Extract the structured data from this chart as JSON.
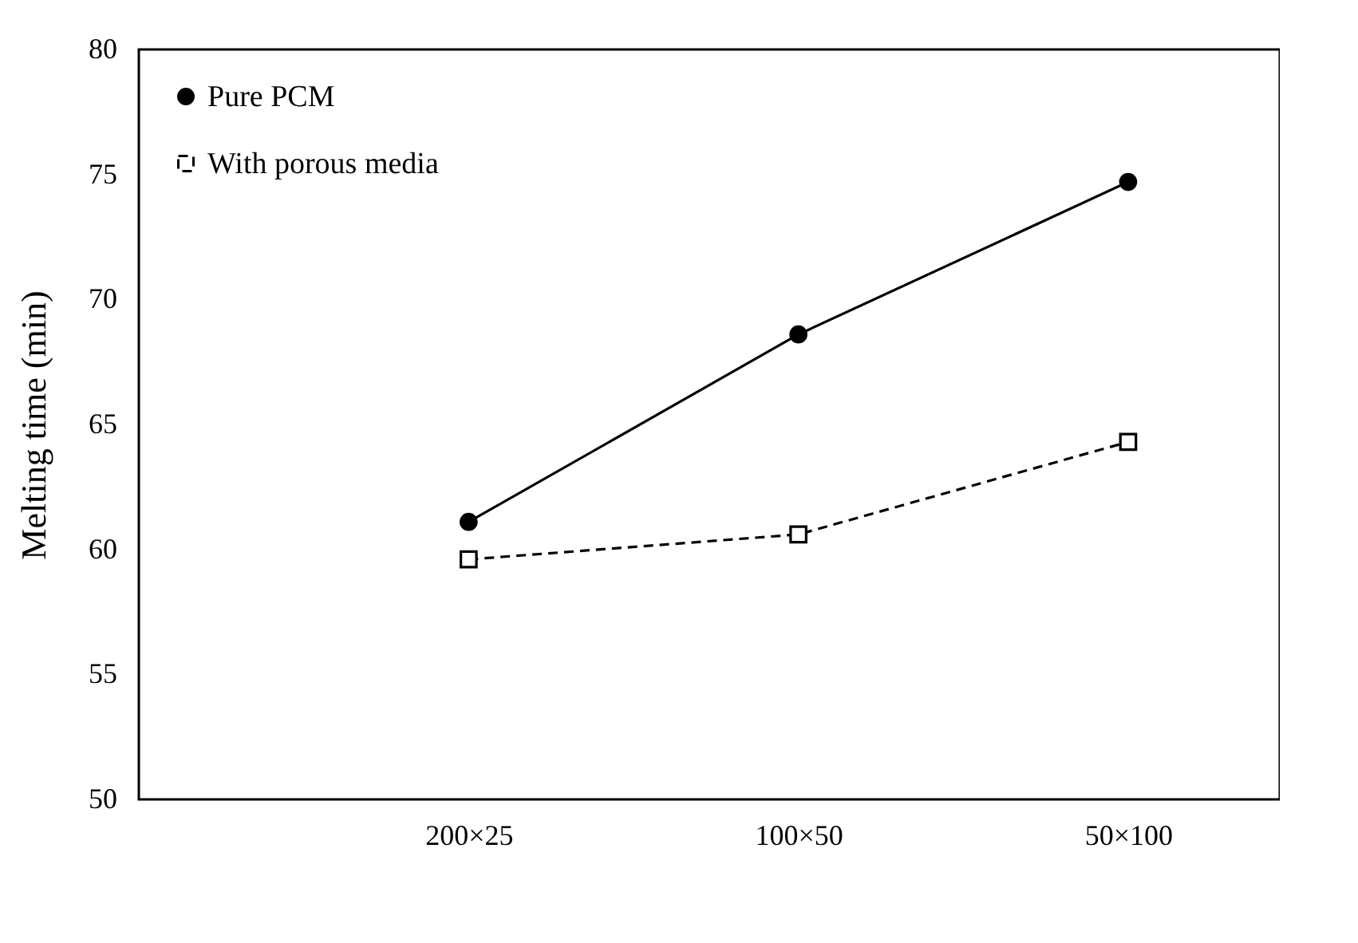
{
  "chart_data": {
    "type": "line",
    "ylabel": "Melting time (min)",
    "categories": [
      "200×25",
      "100×50",
      "50×100"
    ],
    "series": [
      {
        "name": "Pure PCM",
        "color": "#000000",
        "values": [
          61.1,
          68.6,
          74.7
        ],
        "marker": "circle",
        "line_style": "solid"
      },
      {
        "name": "With porous media",
        "color": "#000000",
        "values": [
          59.6,
          60.6,
          64.3
        ],
        "marker": "square",
        "line_style": "dashed"
      }
    ],
    "ylim": [
      50,
      80
    ],
    "yticks": [
      50,
      55,
      60,
      65,
      70,
      75,
      80
    ],
    "grid": false,
    "legend": "top left"
  }
}
